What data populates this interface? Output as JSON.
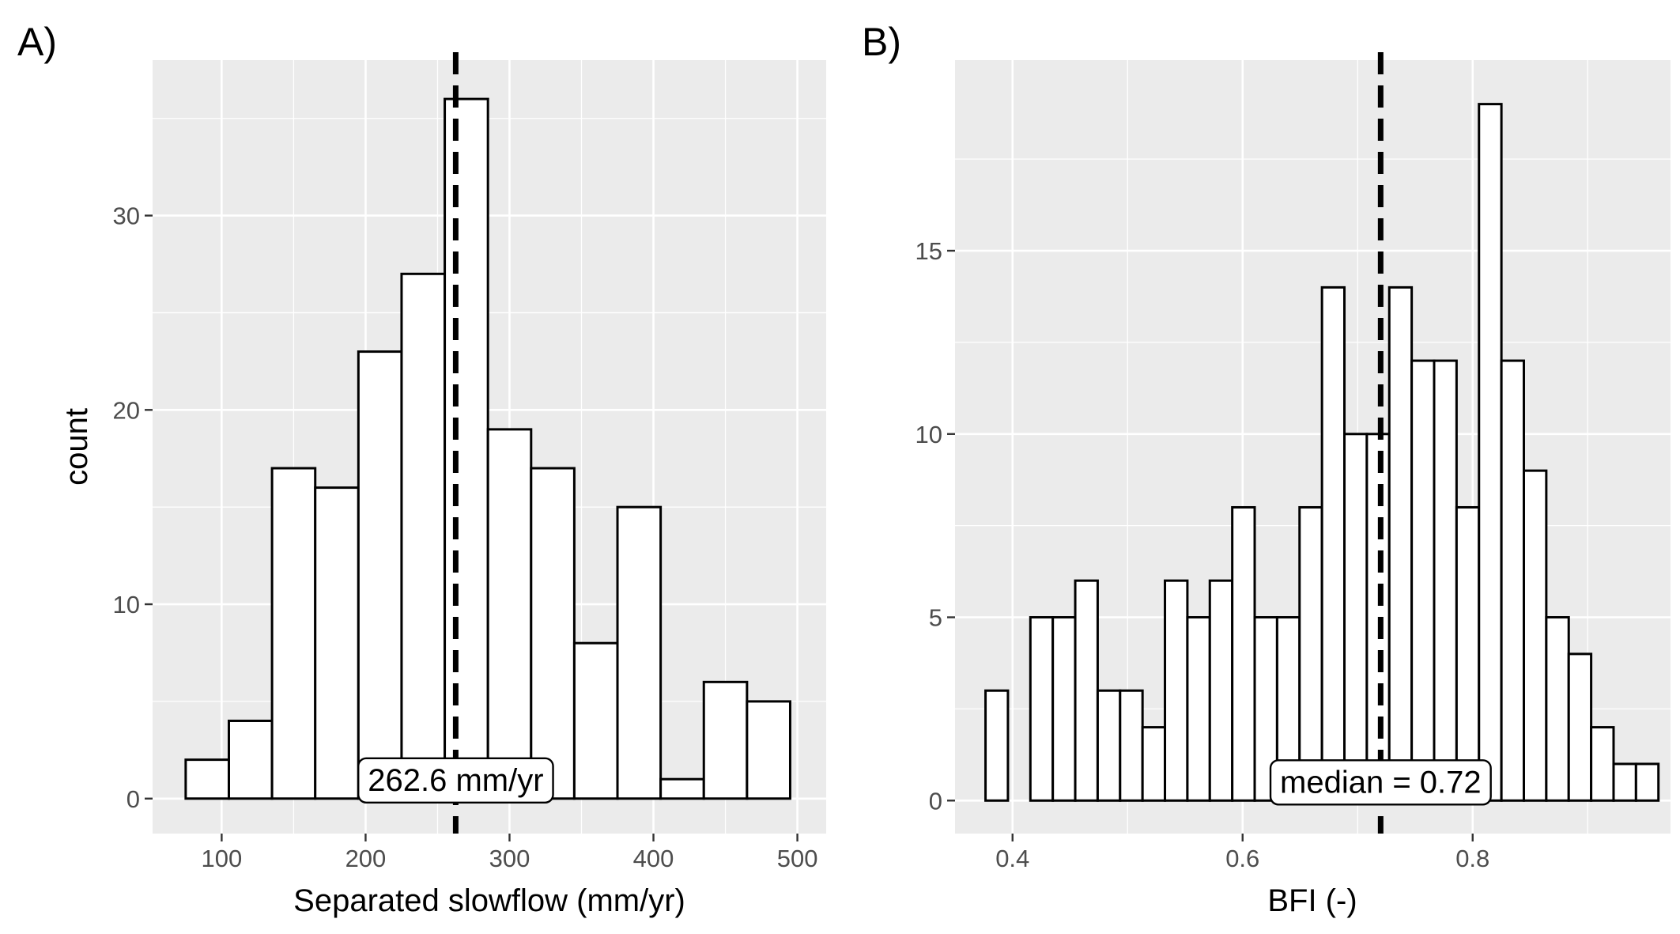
{
  "chart_data": [
    {
      "panel_label": "A)",
      "type": "bar",
      "xlabel": "Separated slowflow (mm/yr)",
      "ylabel": "count",
      "xlim": [
        52,
        520
      ],
      "ylim": [
        -1.8,
        38
      ],
      "xticks": [
        100,
        200,
        300,
        400,
        500
      ],
      "yticks": [
        0,
        10,
        20,
        30
      ],
      "bin_width": 30,
      "bin_starts": [
        75,
        105,
        135,
        165,
        195,
        225,
        255,
        285,
        315,
        345,
        375,
        405,
        435,
        465
      ],
      "values": [
        2,
        4,
        17,
        16,
        23,
        27,
        36,
        19,
        17,
        8,
        15,
        1,
        6,
        5
      ],
      "median": 262.6,
      "annotation": "262.6 mm/yr",
      "grid": true
    },
    {
      "panel_label": "B)",
      "type": "bar",
      "xlabel": "BFI (-)",
      "ylabel": "",
      "xlim": [
        0.35,
        0.972
      ],
      "ylim": [
        -0.9,
        20.2
      ],
      "xticks": [
        0.4,
        0.6,
        0.8
      ],
      "yticks": [
        0,
        5,
        10,
        15
      ],
      "bin_width": 0.0195,
      "bin_starts": [
        0.3765,
        0.396,
        0.4155,
        0.435,
        0.4545,
        0.474,
        0.4935,
        0.513,
        0.5325,
        0.552,
        0.5715,
        0.591,
        0.6105,
        0.63,
        0.6495,
        0.669,
        0.6885,
        0.708,
        0.7275,
        0.747,
        0.7665,
        0.786,
        0.8055,
        0.825,
        0.8445,
        0.864,
        0.8835,
        0.903,
        0.9225,
        0.942
      ],
      "values": [
        3,
        0,
        5,
        5,
        6,
        3,
        3,
        2,
        6,
        5,
        6,
        8,
        5,
        5,
        8,
        14,
        10,
        10,
        14,
        12,
        12,
        8,
        19,
        12,
        9,
        5,
        4,
        2,
        1,
        1
      ],
      "median": 0.72,
      "annotation": "median = 0.72",
      "grid": true
    }
  ]
}
